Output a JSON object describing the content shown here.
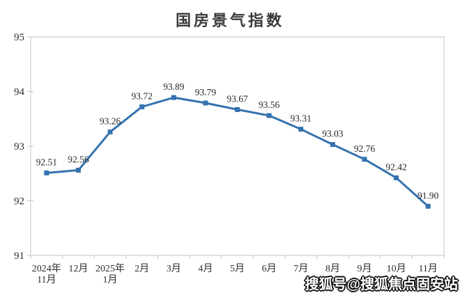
{
  "page": {
    "background": "#ffffff"
  },
  "chart_data": {
    "type": "line",
    "title": "国房景气指数",
    "categories": [
      [
        "2024年",
        "11月"
      ],
      [
        "12月"
      ],
      [
        "2025年",
        "1月"
      ],
      [
        "2月"
      ],
      [
        "3月"
      ],
      [
        "4月"
      ],
      [
        "5月"
      ],
      [
        "6月"
      ],
      [
        "7月"
      ],
      [
        "8月"
      ],
      [
        "9月"
      ],
      [
        "10月"
      ],
      [
        "11月"
      ]
    ],
    "series": [
      {
        "name": "国房景气指数",
        "values": [
          92.51,
          92.56,
          93.26,
          93.72,
          93.89,
          93.79,
          93.67,
          93.56,
          93.31,
          93.03,
          92.76,
          92.42,
          91.9
        ]
      }
    ],
    "data_labels": [
      "92.51",
      "92.56",
      "93.26",
      "93.72",
      "93.89",
      "93.79",
      "93.67",
      "93.56",
      "93.31",
      "93.03",
      "92.76",
      "92.42",
      "91.90"
    ],
    "yticks": [
      "95",
      "94",
      "93",
      "92",
      "91"
    ],
    "ylim": [
      91,
      95
    ],
    "grid": false,
    "legend": "none",
    "marker": "square",
    "colors": {
      "line": "#3572B0",
      "axis": "#C6C6C6",
      "tick_text": "#2e2e2e",
      "data_label_text": "#262626"
    }
  },
  "watermark": {
    "text": "搜狐号@搜狐焦点固安站"
  }
}
